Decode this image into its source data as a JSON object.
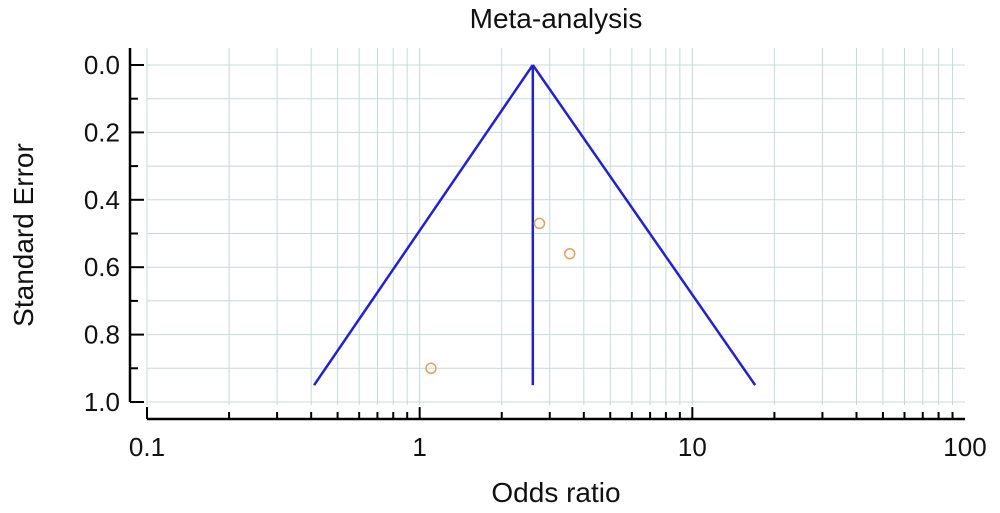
{
  "chart_data": {
    "type": "scatter",
    "title": "Meta-analysis",
    "xlabel": "Odds ratio",
    "ylabel": "Standard Error",
    "x_scale": "log",
    "xlim": [
      0.1,
      100
    ],
    "ylim": [
      0.0,
      1.0
    ],
    "y_inverted": true,
    "x_ticks": [
      {
        "value": 0.1,
        "label": "0.1"
      },
      {
        "value": 1,
        "label": "1"
      },
      {
        "value": 10,
        "label": "10"
      },
      {
        "value": 100,
        "label": "100"
      }
    ],
    "y_ticks": [
      {
        "value": 0.0,
        "label": "0.0"
      },
      {
        "value": 0.2,
        "label": "0.2"
      },
      {
        "value": 0.4,
        "label": "0.4"
      },
      {
        "value": 0.6,
        "label": "0.6"
      },
      {
        "value": 0.8,
        "label": "0.8"
      },
      {
        "value": 1.0,
        "label": "1.0"
      }
    ],
    "grid": true,
    "pooled_estimate": 2.6,
    "funnel": {
      "apex": [
        2.6,
        0.0
      ],
      "lower_left": [
        0.41,
        0.95
      ],
      "lower_right": [
        17,
        0.95
      ],
      "center_line_bottom_se": 0.95
    },
    "studies": [
      {
        "x": 2.75,
        "y": 0.47
      },
      {
        "x": 3.55,
        "y": 0.56
      },
      {
        "x": 1.1,
        "y": 0.9
      }
    ],
    "colors": {
      "funnel": "#2222cc",
      "points": "#e0a060",
      "grid": "#c8d8d8",
      "axis": "#000000"
    }
  }
}
